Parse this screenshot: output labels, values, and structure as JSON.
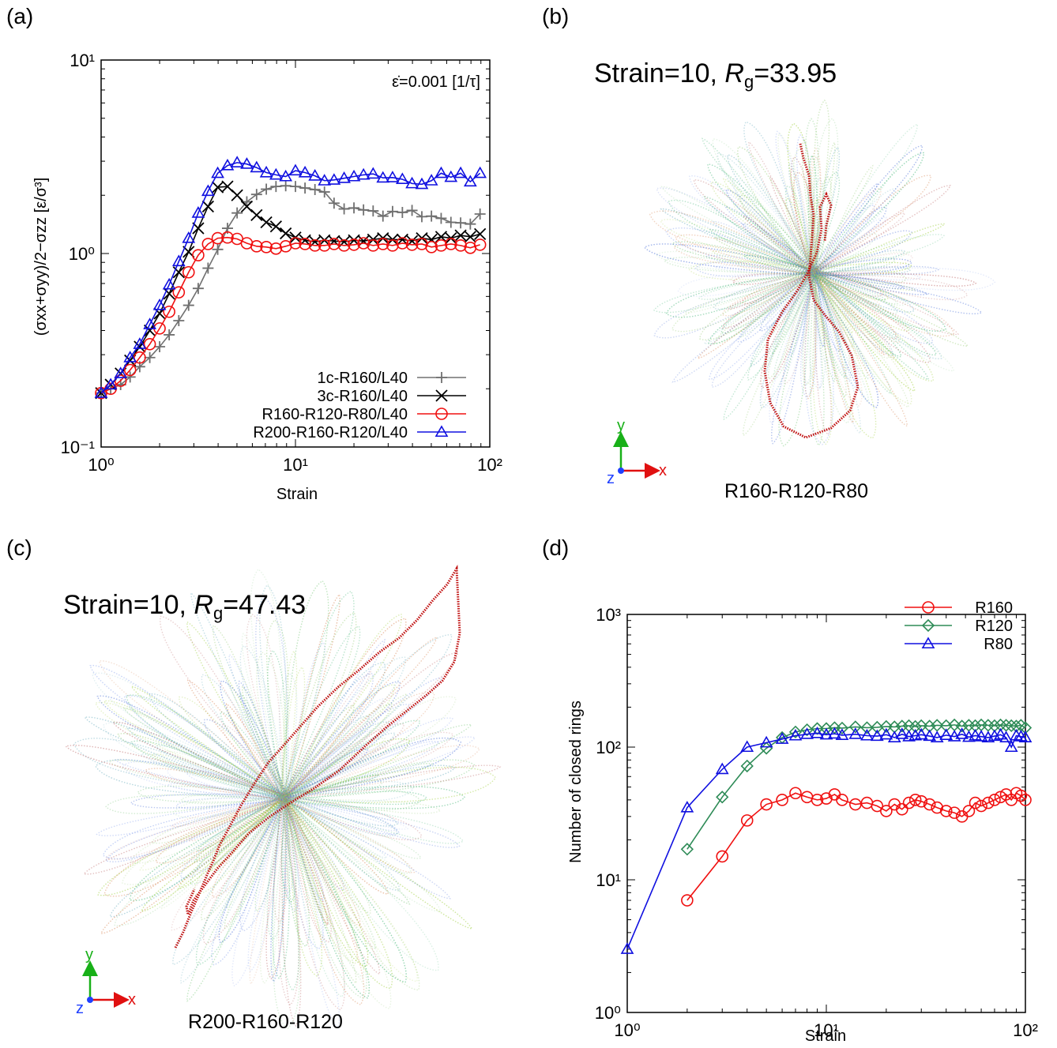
{
  "panels": {
    "a": {
      "tag": "(a)"
    },
    "b": {
      "tag": "(b)",
      "title_prefix": "Strain=10, ",
      "title_sym": "R",
      "title_sub": "g",
      "title_value": "=33.95",
      "caption": "R160-R120-R80"
    },
    "c": {
      "tag": "(c)",
      "title_prefix": "Strain=10, ",
      "title_sym": "R",
      "title_sub": "g",
      "title_value": "=47.43",
      "caption": "R200-R160-R120"
    },
    "d": {
      "tag": "(d)"
    }
  },
  "axes_glyph": {
    "y": "y",
    "x": "x",
    "z": "z",
    "x_color": "#e01010",
    "y_color": "#18b018",
    "z_color": "#2040ff"
  },
  "colors": {
    "gray": "#707070",
    "black": "#000000",
    "red": "#f01010",
    "blue": "#1010e0",
    "green": "#2e8b57",
    "chain": "#c01010"
  },
  "chart_data": [
    {
      "type": "line",
      "panel": "(a)",
      "xlabel": "Strain",
      "ylabel": "(σxx+σyy)/2−σzz [ε/σ³]",
      "xscale": "log",
      "yscale": "log",
      "xlim": [
        1,
        100
      ],
      "ylim": [
        0.1,
        10
      ],
      "xticks": [
        "10⁰",
        "10¹",
        "10²"
      ],
      "yticks": [
        "10⁻¹",
        "10⁰",
        "10¹"
      ],
      "annotation": "ε̇=0.001 [1/τ]",
      "legend_position": "bottom-right",
      "series": [
        {
          "name": "1c-R160/L40",
          "marker": "plus",
          "color": "#707070",
          "x": [
            1.0,
            1.12,
            1.26,
            1.41,
            1.58,
            1.78,
            2.0,
            2.24,
            2.51,
            2.82,
            3.16,
            3.55,
            3.98,
            4.47,
            5.01,
            5.62,
            6.31,
            7.08,
            7.94,
            8.91,
            10.0,
            11.2,
            12.6,
            14.1,
            15.8,
            17.8,
            20.0,
            22.4,
            25.1,
            28.2,
            31.6,
            35.5,
            39.8,
            44.7,
            50.1,
            56.2,
            63.1,
            70.8,
            79.4,
            89.1
          ],
          "y": [
            0.19,
            0.2,
            0.21,
            0.23,
            0.26,
            0.29,
            0.33,
            0.38,
            0.45,
            0.54,
            0.66,
            0.84,
            1.05,
            1.35,
            1.62,
            1.85,
            2.02,
            2.15,
            2.22,
            2.24,
            2.22,
            2.18,
            2.14,
            2.08,
            1.82,
            1.7,
            1.72,
            1.68,
            1.66,
            1.56,
            1.65,
            1.63,
            1.67,
            1.55,
            1.56,
            1.52,
            1.45,
            1.44,
            1.42,
            1.6
          ]
        },
        {
          "name": "3c-R160/L40",
          "marker": "cross",
          "color": "#000000",
          "x": [
            1.0,
            1.12,
            1.26,
            1.41,
            1.58,
            1.78,
            2.0,
            2.24,
            2.51,
            2.82,
            3.16,
            3.55,
            3.98,
            4.47,
            5.01,
            5.62,
            6.31,
            7.08,
            7.94,
            8.91,
            10.0,
            11.2,
            12.6,
            14.1,
            15.8,
            17.8,
            20.0,
            22.4,
            25.1,
            28.2,
            31.6,
            35.5,
            39.8,
            44.7,
            50.1,
            56.2,
            63.1,
            70.8,
            79.4,
            89.1
          ],
          "y": [
            0.19,
            0.21,
            0.24,
            0.28,
            0.33,
            0.4,
            0.49,
            0.62,
            0.8,
            1.02,
            1.35,
            1.75,
            2.2,
            2.22,
            2.0,
            1.75,
            1.58,
            1.45,
            1.38,
            1.27,
            1.21,
            1.17,
            1.15,
            1.17,
            1.16,
            1.15,
            1.17,
            1.16,
            1.18,
            1.2,
            1.18,
            1.18,
            1.16,
            1.2,
            1.18,
            1.22,
            1.2,
            1.24,
            1.22,
            1.26
          ]
        },
        {
          "name": "R160-R120-R80/L40",
          "marker": "circle",
          "color": "#f01010",
          "x": [
            1.0,
            1.12,
            1.26,
            1.41,
            1.58,
            1.78,
            2.0,
            2.24,
            2.51,
            2.82,
            3.16,
            3.55,
            3.98,
            4.47,
            5.01,
            5.62,
            6.31,
            7.08,
            7.94,
            8.91,
            10.0,
            11.2,
            12.6,
            14.1,
            15.8,
            17.8,
            20.0,
            22.4,
            25.1,
            28.2,
            31.6,
            35.5,
            39.8,
            44.7,
            50.1,
            56.2,
            63.1,
            70.8,
            79.4,
            89.1
          ],
          "y": [
            0.19,
            0.2,
            0.22,
            0.25,
            0.29,
            0.34,
            0.41,
            0.5,
            0.63,
            0.8,
            0.98,
            1.12,
            1.2,
            1.21,
            1.19,
            1.13,
            1.09,
            1.08,
            1.06,
            1.09,
            1.13,
            1.12,
            1.1,
            1.1,
            1.12,
            1.1,
            1.11,
            1.13,
            1.1,
            1.12,
            1.1,
            1.13,
            1.11,
            1.12,
            1.08,
            1.1,
            1.12,
            1.1,
            1.07,
            1.11
          ]
        },
        {
          "name": "R200-R160-R120/L40",
          "marker": "triangle",
          "color": "#1010e0",
          "x": [
            1.0,
            1.12,
            1.26,
            1.41,
            1.58,
            1.78,
            2.0,
            2.24,
            2.51,
            2.82,
            3.16,
            3.55,
            3.98,
            4.47,
            5.01,
            5.62,
            6.31,
            7.08,
            7.94,
            8.91,
            10.0,
            11.2,
            12.6,
            14.1,
            15.8,
            17.8,
            20.0,
            22.4,
            25.1,
            28.2,
            31.6,
            35.5,
            39.8,
            44.7,
            50.1,
            56.2,
            63.1,
            70.8,
            79.4,
            89.1
          ],
          "y": [
            0.19,
            0.21,
            0.24,
            0.29,
            0.34,
            0.43,
            0.54,
            0.69,
            0.91,
            1.2,
            1.62,
            2.1,
            2.6,
            2.85,
            2.95,
            2.9,
            2.78,
            2.62,
            2.55,
            2.5,
            2.68,
            2.62,
            2.52,
            2.38,
            2.4,
            2.45,
            2.5,
            2.55,
            2.58,
            2.46,
            2.47,
            2.42,
            2.3,
            2.28,
            2.38,
            2.6,
            2.48,
            2.6,
            2.35,
            2.6
          ]
        }
      ]
    },
    {
      "type": "line",
      "panel": "(d)",
      "xlabel": "Strain",
      "ylabel": "Number of closed rings",
      "xscale": "log",
      "yscale": "log",
      "xlim": [
        1,
        100
      ],
      "ylim": [
        1,
        1000
      ],
      "xticks": [
        "10⁰",
        "10¹",
        "10²"
      ],
      "yticks": [
        "10⁰",
        "10¹",
        "10²",
        "10³"
      ],
      "legend_position": "top-right",
      "series": [
        {
          "name": "R160",
          "marker": "circle",
          "color": "#f01010",
          "x": [
            2,
            3,
            4,
            5,
            6,
            7,
            8,
            9,
            10,
            11,
            12,
            14,
            16,
            18,
            20,
            22,
            24,
            26,
            28,
            30,
            33,
            36,
            40,
            44,
            48,
            52,
            56,
            60,
            65,
            70,
            75,
            80,
            85,
            90,
            95,
            100
          ],
          "y": [
            7,
            15,
            28,
            37,
            40,
            45,
            42,
            40,
            41,
            44,
            40,
            37,
            38,
            36,
            33,
            37,
            34,
            38,
            40,
            39,
            37,
            35,
            33,
            32,
            30,
            33,
            38,
            36,
            38,
            40,
            42,
            44,
            40,
            45,
            43,
            40
          ]
        },
        {
          "name": "R120",
          "marker": "diamond",
          "color": "#2e8b57",
          "x": [
            2,
            3,
            4,
            5,
            6,
            7,
            8,
            9,
            10,
            11,
            12,
            14,
            16,
            18,
            20,
            22,
            24,
            26,
            28,
            30,
            33,
            36,
            40,
            44,
            48,
            52,
            56,
            60,
            65,
            70,
            75,
            80,
            85,
            90,
            95,
            100
          ],
          "y": [
            17,
            42,
            72,
            98,
            118,
            130,
            135,
            138,
            138,
            140,
            139,
            142,
            140,
            141,
            143,
            142,
            144,
            145,
            143,
            145,
            144,
            146,
            145,
            147,
            144,
            146,
            145,
            147,
            146,
            145,
            147,
            146,
            145,
            144,
            146,
            140
          ]
        },
        {
          "name": "R80",
          "marker": "triangle",
          "color": "#1010e0",
          "x": [
            1,
            2,
            3,
            4,
            5,
            6,
            7,
            8,
            9,
            10,
            11,
            12,
            14,
            16,
            18,
            20,
            22,
            24,
            26,
            28,
            30,
            33,
            36,
            40,
            44,
            48,
            52,
            56,
            60,
            65,
            70,
            75,
            80,
            85,
            90,
            95,
            100
          ],
          "y": [
            3,
            35,
            68,
            100,
            108,
            115,
            122,
            125,
            127,
            124,
            126,
            123,
            125,
            122,
            121,
            124,
            118,
            125,
            120,
            122,
            124,
            121,
            118,
            123,
            120,
            125,
            119,
            122,
            120,
            118,
            121,
            124,
            118,
            100,
            122,
            120,
            118
          ]
        }
      ]
    }
  ]
}
